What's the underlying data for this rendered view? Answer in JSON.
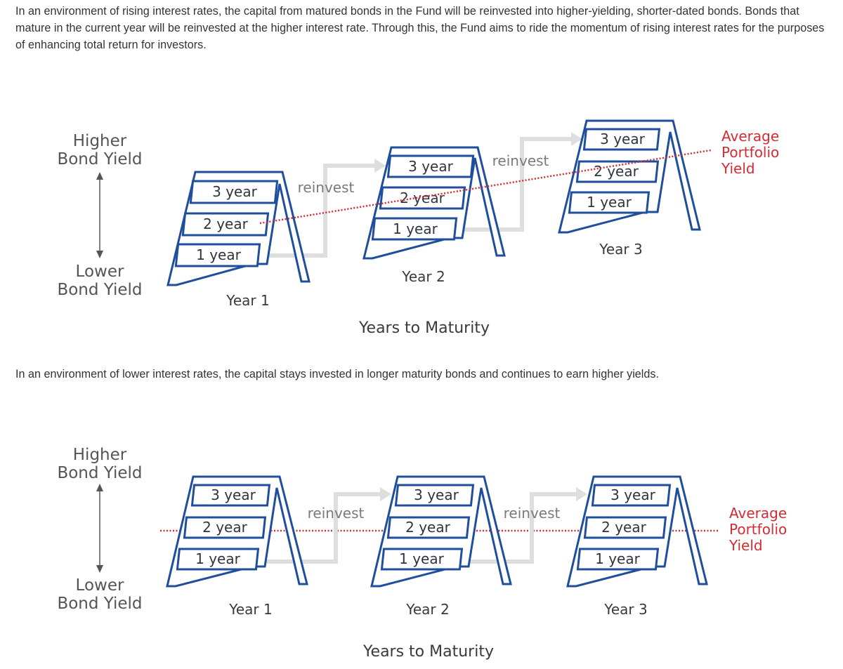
{
  "paragraphs": {
    "rising": "In an environment of rising interest rates, the capital from matured bonds in the Fund will be reinvested into higher-yielding, shorter-dated bonds. Bonds that mature in the current year will be reinvested at the higher interest rate. Through this, the Fund aims to ride the momentum of rising interest rates for the purposes of enhancing total return for investors.",
    "lower": "In an environment of lower interest rates, the capital stays invested in longer maturity bonds and continues to earn higher yields."
  },
  "diagrams": [
    {
      "scenario": "rising",
      "axis": {
        "top_line1": "Higher",
        "top_line2": "Bond Yield",
        "bottom_line1": "Lower",
        "bottom_line2": "Bond Yield"
      },
      "ladders": [
        {
          "year_label": "Year 1",
          "tiers": [
            "3 year",
            "2 year",
            "1 year"
          ]
        },
        {
          "year_label": "Year 2",
          "tiers": [
            "3 year",
            "2 year",
            "1 year"
          ]
        },
        {
          "year_label": "Year 3",
          "tiers": [
            "3 year",
            "2 year",
            "1 year"
          ]
        }
      ],
      "reinvest_labels": [
        "reinvest",
        "reinvest"
      ],
      "average_yield_label": [
        "Average",
        "Portfolio",
        "Yield"
      ],
      "xlabel": "Years to Maturity"
    },
    {
      "scenario": "lower",
      "axis": {
        "top_line1": "Higher",
        "top_line2": "Bond Yield",
        "bottom_line1": "Lower",
        "bottom_line2": "Bond Yield"
      },
      "ladders": [
        {
          "year_label": "Year 1",
          "tiers": [
            "3 year",
            "2 year",
            "1 year"
          ]
        },
        {
          "year_label": "Year 2",
          "tiers": [
            "3 year",
            "2 year",
            "1 year"
          ]
        },
        {
          "year_label": "Year 3",
          "tiers": [
            "3 year",
            "2 year",
            "1 year"
          ]
        }
      ],
      "reinvest_labels": [
        "reinvest",
        "reinvest"
      ],
      "average_yield_label": [
        "Average",
        "Portfolio",
        "Yield"
      ],
      "xlabel": "Years to Maturity"
    }
  ],
  "colors": {
    "ladder": "#1f4e9c",
    "average_yield": "#d62b33",
    "reinvest_arrow": "#dedede",
    "axis_arrow": "#555555"
  }
}
